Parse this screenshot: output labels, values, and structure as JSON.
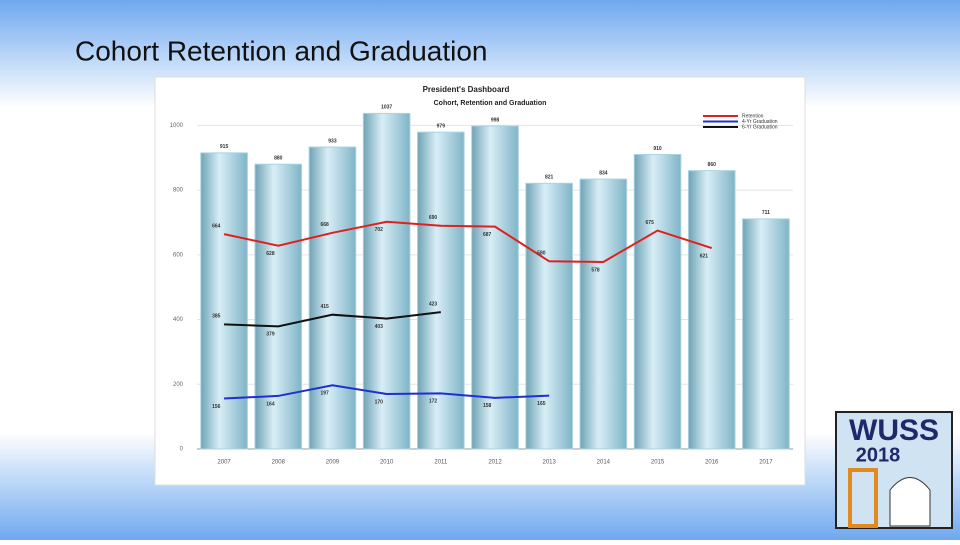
{
  "slide_title": "Cohort Retention and Graduation",
  "logo": {
    "line1": "WUSS",
    "line2": "2018"
  },
  "chart_data": {
    "type": "bar",
    "title": "President's Dashboard",
    "subtitle": "Cohort, Retention and Graduation",
    "categories": [
      "2007",
      "2008",
      "2009",
      "2010",
      "2011",
      "2012",
      "2013",
      "2014",
      "2015",
      "2016",
      "2017"
    ],
    "series": [
      {
        "type": "bar",
        "color": "#a9d3e3",
        "values": [
          915,
          880,
          933,
          1037,
          979,
          998,
          821,
          834,
          910,
          860,
          711
        ]
      },
      {
        "type": "line",
        "name": "Retention",
        "color": "#e0201c",
        "values": [
          664,
          628,
          668,
          702,
          690,
          687,
          580,
          578,
          675,
          621,
          null
        ]
      },
      {
        "type": "line",
        "name": "4-Yr Graduation",
        "color": "#1f2fd0",
        "values": [
          156,
          164,
          197,
          170,
          172,
          158,
          165,
          null,
          null,
          null,
          null
        ]
      },
      {
        "type": "line",
        "name": "6-Yr Graduation",
        "color": "#111111",
        "values": [
          385,
          379,
          415,
          403,
          423,
          null,
          null,
          null,
          null,
          null,
          null
        ]
      }
    ],
    "ylim": [
      0,
      1100
    ],
    "yticks": [
      0,
      200,
      400,
      600,
      800,
      1000
    ],
    "grid": true,
    "legend": "top-right"
  }
}
